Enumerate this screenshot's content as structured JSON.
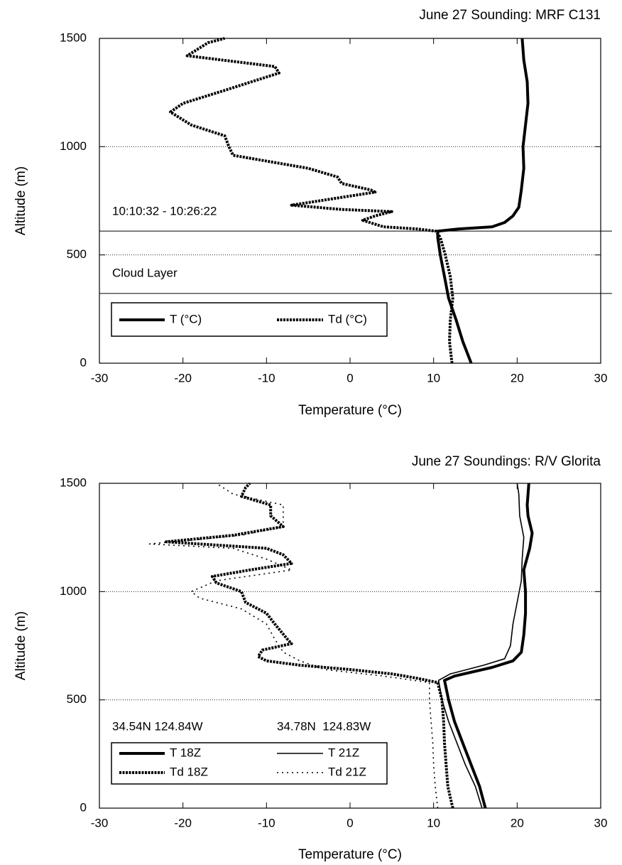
{
  "chart_data": [
    {
      "type": "line",
      "title": "June 27 Sounding: MRF C131",
      "xlabel": "Temperature (°C)",
      "ylabel": "Altitude (m)",
      "xlim": [
        -30,
        30
      ],
      "xticks": [
        -30,
        -20,
        -10,
        0,
        10,
        20,
        30
      ],
      "ylim": [
        0,
        1500
      ],
      "yticks": [
        0,
        500,
        1000,
        1500
      ],
      "grid": true,
      "annotations": [
        "10:10:32 - 10:26:22",
        "Cloud Layer"
      ],
      "reference_lines": [
        322,
        610
      ],
      "series": [
        {
          "name": "T (°C)",
          "color": "#000000",
          "style": "solid",
          "weight": "thick",
          "x": [
            14.5,
            13.5,
            12.7,
            11.8,
            11.3,
            10.8,
            10.5,
            10.5,
            13,
            17,
            18.5,
            19.5,
            20.2,
            20.5,
            20.8,
            20.7,
            21,
            21.3,
            21.2,
            20.8,
            20.6
          ],
          "values": [
            0,
            100,
            200,
            300,
            400,
            500,
            580,
            610,
            620,
            630,
            650,
            680,
            720,
            800,
            900,
            1000,
            1100,
            1200,
            1300,
            1400,
            1500
          ]
        },
        {
          "name": "Td (°C)",
          "color": "#000000",
          "style": "dashed",
          "weight": "thick",
          "x": [
            12.2,
            11.9,
            12,
            12.3,
            12,
            11.4,
            10.8,
            10.3,
            8,
            4,
            1.5,
            3,
            5,
            -1,
            -7,
            -2,
            3,
            2.5,
            -1,
            -1.5,
            -5,
            -14,
            -14.5,
            -15,
            -19,
            -21.5,
            -20,
            -15,
            -8.5,
            -9,
            -19.5,
            -17,
            -15
          ],
          "values": [
            0,
            100,
            200,
            300,
            400,
            500,
            580,
            610,
            620,
            630,
            660,
            680,
            700,
            710,
            730,
            760,
            790,
            800,
            830,
            860,
            900,
            960,
            1000,
            1050,
            1100,
            1160,
            1200,
            1260,
            1340,
            1370,
            1420,
            1480,
            1500
          ]
        }
      ]
    },
    {
      "type": "line",
      "title": "June 27 Soundings: R/V Glorita",
      "xlabel": "Temperature (°C)",
      "ylabel": "Altitude (m)",
      "xlim": [
        -30,
        30
      ],
      "xticks": [
        -30,
        -20,
        -10,
        0,
        10,
        20,
        30
      ],
      "ylim": [
        0,
        1500
      ],
      "yticks": [
        0,
        500,
        1000,
        1500
      ],
      "grid": true,
      "annotations": [
        "34.54N 124.84W",
        "34.78N  124.83W"
      ],
      "series": [
        {
          "name": "T 18Z",
          "color": "#000000",
          "style": "solid",
          "weight": "thick",
          "x": [
            16.2,
            15.5,
            14.5,
            13.5,
            12.5,
            11.8,
            11.3,
            12.5,
            17,
            19.5,
            20.5,
            20.8,
            21,
            21,
            20.8,
            21.5,
            21.8,
            21.3,
            21.2,
            21.4
          ],
          "values": [
            0,
            100,
            200,
            300,
            400,
            500,
            590,
            610,
            650,
            680,
            720,
            800,
            900,
            1000,
            1100,
            1200,
            1270,
            1350,
            1400,
            1500
          ]
        },
        {
          "name": "T 21Z",
          "color": "#000000",
          "style": "solid",
          "weight": "thin",
          "x": [
            15.8,
            15,
            13.8,
            12.8,
            11.8,
            11,
            10.6,
            12,
            16,
            18.5,
            19.2,
            19.5,
            20,
            20.5,
            20.6,
            20.8,
            20.3,
            20.2,
            20
          ],
          "values": [
            0,
            100,
            200,
            300,
            400,
            500,
            590,
            620,
            660,
            690,
            750,
            850,
            950,
            1050,
            1150,
            1250,
            1350,
            1450,
            1500
          ]
        },
        {
          "name": "Td 18Z",
          "color": "#000000",
          "style": "dashed",
          "weight": "thick",
          "x": [
            12.3,
            12,
            11.7,
            11.5,
            11.3,
            11.2,
            11,
            10.5,
            8,
            5,
            0,
            -6,
            -10,
            -11,
            -10.5,
            -7,
            -7.5,
            -9,
            -10,
            -12.5,
            -13,
            -16,
            -16.5,
            -12,
            -7,
            -8,
            -10,
            -22,
            -14,
            -8,
            -9.5,
            -9.5,
            -13,
            -12.5,
            -12
          ],
          "values": [
            0,
            50,
            100,
            200,
            300,
            400,
            500,
            580,
            600,
            620,
            640,
            660,
            680,
            700,
            730,
            760,
            780,
            850,
            900,
            950,
            1000,
            1040,
            1070,
            1100,
            1130,
            1170,
            1200,
            1230,
            1260,
            1300,
            1350,
            1400,
            1440,
            1480,
            1500
          ]
        },
        {
          "name": "Td 21Z",
          "color": "#000000",
          "style": "dotted",
          "weight": "thin",
          "x": [
            10.5,
            10.2,
            10,
            9.9,
            9.7,
            9.5,
            9.5,
            4,
            -3,
            -6,
            -8,
            -9,
            -10,
            -13,
            -18,
            -19,
            -16,
            -7,
            -10,
            -14,
            -24,
            -13,
            -8,
            -8,
            -8,
            -14,
            -16
          ],
          "values": [
            0,
            100,
            200,
            300,
            400,
            500,
            580,
            610,
            640,
            680,
            720,
            780,
            850,
            920,
            970,
            1000,
            1050,
            1100,
            1150,
            1200,
            1220,
            1260,
            1300,
            1350,
            1400,
            1450,
            1500
          ]
        }
      ]
    }
  ]
}
